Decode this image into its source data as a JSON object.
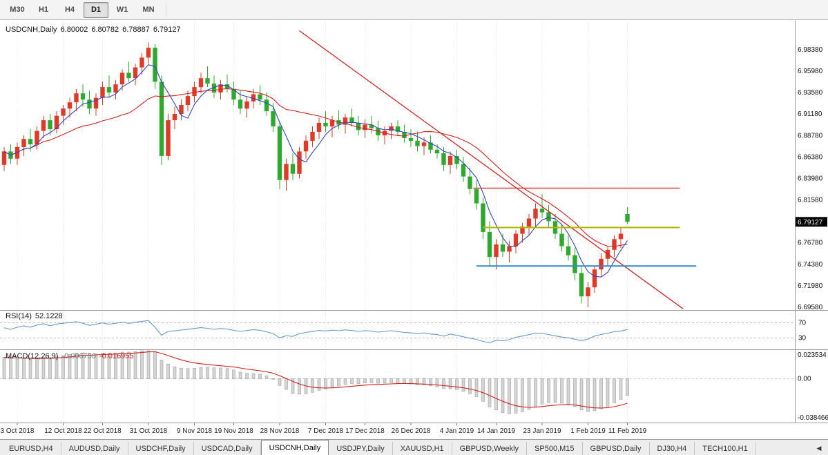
{
  "toolbar": {
    "timeframes": [
      {
        "label": "M30",
        "active": false
      },
      {
        "label": "H1",
        "active": false
      },
      {
        "label": "H4",
        "active": false
      },
      {
        "label": "D1",
        "active": true
      },
      {
        "label": "W1",
        "active": false
      },
      {
        "label": "MN",
        "active": false
      }
    ]
  },
  "chart": {
    "title_symbol": "USDCNH,Daily",
    "ohlc": {
      "open": "6.80002",
      "high": "6.80782",
      "low": "6.78887",
      "close": "6.79127"
    },
    "current_price": "6.79127",
    "rsi": {
      "name": "RSI(14)",
      "value": "52.1228"
    },
    "macd": {
      "name": "MACD(12,26,9)",
      "value_main": "-0.006756",
      "value_signal": "-0.016955"
    }
  },
  "chart_data": {
    "type": "candlestick",
    "title": "USDCNH,Daily",
    "bull_color": "#dd3b2a",
    "bear_color": "#2fa82f",
    "x_axis": {
      "tick_labels": [
        "3 Oct 2018",
        "12 Oct 2018",
        "22 Oct 2018",
        "31 Oct 2018",
        "9 Nov 2018",
        "19 Nov 2018",
        "28 Nov 2018",
        "7 Dec 2018",
        "17 Dec 2018",
        "26 Dec 2018",
        "4 Jan 2019",
        "14 Jan 2019",
        "23 Jan 2019",
        "1 Feb 2019",
        "11 Feb 2019"
      ],
      "tick_indices": [
        2,
        9,
        15,
        22,
        29,
        35,
        42,
        49,
        55,
        62,
        69,
        75,
        82,
        89,
        95
      ]
    },
    "y_axis": {
      "labels": [
        "6.98380",
        "6.95980",
        "6.93580",
        "6.91180",
        "6.88780",
        "6.86380",
        "6.83980",
        "6.81580",
        "6.76780",
        "6.74380",
        "6.71980",
        "6.69580"
      ],
      "current_price": 6.79127
    },
    "candles": [
      [
        6.855,
        6.875,
        6.848,
        6.87
      ],
      [
        6.87,
        6.878,
        6.856,
        6.862
      ],
      [
        6.862,
        6.88,
        6.855,
        6.875
      ],
      [
        6.875,
        6.888,
        6.865,
        6.884
      ],
      [
        6.884,
        6.895,
        6.87,
        6.878
      ],
      [
        6.878,
        6.898,
        6.872,
        6.893
      ],
      [
        6.893,
        6.91,
        6.885,
        6.905
      ],
      [
        6.905,
        6.912,
        6.888,
        6.895
      ],
      [
        6.895,
        6.915,
        6.89,
        6.91
      ],
      [
        6.91,
        6.922,
        6.9,
        6.918
      ],
      [
        6.918,
        6.93,
        6.908,
        6.925
      ],
      [
        6.925,
        6.94,
        6.915,
        6.935
      ],
      [
        6.935,
        6.945,
        6.92,
        6.928
      ],
      [
        6.928,
        6.938,
        6.912,
        6.918
      ],
      [
        6.918,
        6.935,
        6.91,
        6.93
      ],
      [
        6.93,
        6.948,
        6.922,
        6.942
      ],
      [
        6.942,
        6.955,
        6.93,
        6.936
      ],
      [
        6.936,
        6.95,
        6.928,
        6.945
      ],
      [
        6.945,
        6.962,
        6.938,
        6.958
      ],
      [
        6.958,
        6.97,
        6.948,
        6.952
      ],
      [
        6.952,
        6.968,
        6.944,
        6.964
      ],
      [
        6.964,
        6.98,
        6.956,
        6.975
      ],
      [
        6.975,
        6.992,
        6.968,
        6.986
      ],
      [
        6.986,
        6.99,
        6.94,
        6.948
      ],
      [
        6.948,
        6.955,
        6.855,
        6.865
      ],
      [
        6.865,
        6.912,
        6.86,
        6.905
      ],
      [
        6.905,
        6.92,
        6.895,
        6.912
      ],
      [
        6.912,
        6.928,
        6.905,
        6.922
      ],
      [
        6.922,
        6.938,
        6.915,
        6.932
      ],
      [
        6.932,
        6.948,
        6.925,
        6.942
      ],
      [
        6.942,
        6.958,
        6.935,
        6.952
      ],
      [
        6.952,
        6.965,
        6.942,
        6.946
      ],
      [
        6.946,
        6.955,
        6.93,
        6.936
      ],
      [
        6.936,
        6.95,
        6.928,
        6.945
      ],
      [
        6.945,
        6.956,
        6.936,
        6.94
      ],
      [
        6.94,
        6.948,
        6.922,
        6.928
      ],
      [
        6.928,
        6.938,
        6.912,
        6.918
      ],
      [
        6.918,
        6.932,
        6.908,
        6.926
      ],
      [
        6.926,
        6.94,
        6.918,
        6.934
      ],
      [
        6.934,
        6.944,
        6.922,
        6.928
      ],
      [
        6.928,
        6.936,
        6.91,
        6.915
      ],
      [
        6.915,
        6.924,
        6.892,
        6.898
      ],
      [
        6.898,
        6.904,
        6.828,
        6.838
      ],
      [
        6.838,
        6.862,
        6.826,
        6.856
      ],
      [
        6.856,
        6.868,
        6.838,
        6.845
      ],
      [
        6.845,
        6.875,
        6.84,
        6.87
      ],
      [
        6.87,
        6.888,
        6.862,
        6.882
      ],
      [
        6.882,
        6.898,
        6.875,
        6.892
      ],
      [
        6.892,
        6.908,
        6.884,
        6.902
      ],
      [
        6.902,
        6.915,
        6.892,
        6.898
      ],
      [
        6.898,
        6.91,
        6.886,
        6.905
      ],
      [
        6.905,
        6.916,
        6.895,
        6.9
      ],
      [
        6.9,
        6.912,
        6.89,
        6.908
      ],
      [
        6.908,
        6.918,
        6.898,
        6.902
      ],
      [
        6.902,
        6.91,
        6.888,
        6.894
      ],
      [
        6.894,
        6.906,
        6.885,
        6.9
      ],
      [
        6.9,
        6.91,
        6.89,
        6.896
      ],
      [
        6.896,
        6.904,
        6.882,
        6.888
      ],
      [
        6.888,
        6.898,
        6.878,
        6.893
      ],
      [
        6.893,
        6.902,
        6.884,
        6.898
      ],
      [
        6.898,
        6.905,
        6.888,
        6.892
      ],
      [
        6.892,
        6.9,
        6.88,
        6.885
      ],
      [
        6.885,
        6.895,
        6.875,
        6.882
      ],
      [
        6.882,
        6.892,
        6.87,
        6.876
      ],
      [
        6.876,
        6.886,
        6.866,
        6.88
      ],
      [
        6.88,
        6.888,
        6.868,
        6.872
      ],
      [
        6.872,
        6.878,
        6.862,
        6.868
      ],
      [
        6.868,
        6.875,
        6.848,
        6.855
      ],
      [
        6.855,
        6.87,
        6.845,
        6.865
      ],
      [
        6.865,
        6.872,
        6.85,
        6.856
      ],
      [
        6.856,
        6.864,
        6.836,
        6.842
      ],
      [
        6.842,
        6.852,
        6.822,
        6.828
      ],
      [
        6.828,
        6.838,
        6.805,
        6.812
      ],
      [
        6.812,
        6.818,
        6.772,
        6.78
      ],
      [
        6.78,
        6.792,
        6.742,
        6.752
      ],
      [
        6.752,
        6.772,
        6.738,
        6.766
      ],
      [
        6.766,
        6.778,
        6.752,
        6.758
      ],
      [
        6.758,
        6.77,
        6.746,
        6.764
      ],
      [
        6.764,
        6.782,
        6.756,
        6.778
      ],
      [
        6.778,
        6.79,
        6.768,
        6.786
      ],
      [
        6.786,
        6.8,
        6.776,
        6.795
      ],
      [
        6.795,
        6.812,
        6.786,
        6.806
      ],
      [
        6.806,
        6.822,
        6.796,
        6.802
      ],
      [
        6.802,
        6.81,
        6.786,
        6.792
      ],
      [
        6.792,
        6.8,
        6.772,
        6.778
      ],
      [
        6.778,
        6.788,
        6.758,
        6.764
      ],
      [
        6.764,
        6.776,
        6.748,
        6.754
      ],
      [
        6.754,
        6.762,
        6.726,
        6.734
      ],
      [
        6.734,
        6.742,
        6.7,
        6.708
      ],
      [
        6.708,
        6.724,
        6.696,
        6.718
      ],
      [
        6.718,
        6.742,
        6.712,
        6.738
      ],
      [
        6.738,
        6.756,
        6.73,
        6.75
      ],
      [
        6.75,
        6.764,
        6.742,
        6.76
      ],
      [
        6.76,
        6.776,
        6.752,
        6.772
      ],
      [
        6.772,
        6.784,
        6.762,
        6.778
      ],
      [
        6.80002,
        6.80782,
        6.78887,
        6.79127
      ]
    ],
    "overlays": {
      "ma_fast": {
        "type": "sma",
        "period": 5,
        "color": "#3344bb"
      },
      "ma_slow": {
        "type": "sma",
        "period": 20,
        "color": "#cc2222"
      },
      "trendline": {
        "from_index": 45,
        "from_price": 7.005,
        "to_index": 103.5,
        "to_price": 6.694,
        "color": "#cc2222"
      },
      "hlines": [
        {
          "name": "resistance-hline",
          "price": 6.829,
          "from_index": 71.5,
          "to_index": 103,
          "color": "#e8382e",
          "width": 1.6
        },
        {
          "name": "mid-hline",
          "price": 6.785,
          "from_index": 73,
          "to_index": 103,
          "color": "#b3b300",
          "width": 2
        },
        {
          "name": "support-hline",
          "price": 6.742,
          "from_index": 72,
          "to_index": 105.5,
          "color": "#2e86d0",
          "width": 2
        }
      ]
    },
    "indicators": {
      "rsi": {
        "period": 14,
        "current": 52.1228,
        "levels": [
          70,
          30
        ],
        "color": "#6899c8"
      },
      "macd": {
        "fast": 12,
        "slow": 26,
        "signal": 9,
        "current_main": -0.006756,
        "current_signal": -0.016955,
        "hist_color": "#d4d4d4",
        "signal_color": "#cc2222",
        "axis_labels": [
          {
            "text": "0.023534",
            "value": 0.023534
          },
          {
            "text": "0.00",
            "value": 0
          },
          {
            "text": "-0.038466",
            "value": -0.038466
          }
        ]
      }
    }
  },
  "tabs": {
    "scroll_left_icon": "◀",
    "items": [
      {
        "label": "EURUSD,H4",
        "active": false
      },
      {
        "label": "AUDUSD,Daily",
        "active": false
      },
      {
        "label": "USDCHF,Daily",
        "active": false
      },
      {
        "label": "USDCAD,Daily",
        "active": false
      },
      {
        "label": "USDCNH,Daily",
        "active": true
      },
      {
        "label": "USDJPY,Daily",
        "active": false
      },
      {
        "label": "XAUUSD,H1",
        "active": false
      },
      {
        "label": "GBPUSD,Weekly",
        "active": false
      },
      {
        "label": "SP500,M15",
        "active": false
      },
      {
        "label": "GBPUSD,Daily",
        "active": false
      },
      {
        "label": "DJ30,H4",
        "active": false
      },
      {
        "label": "TECH100,H1",
        "active": false
      }
    ]
  }
}
